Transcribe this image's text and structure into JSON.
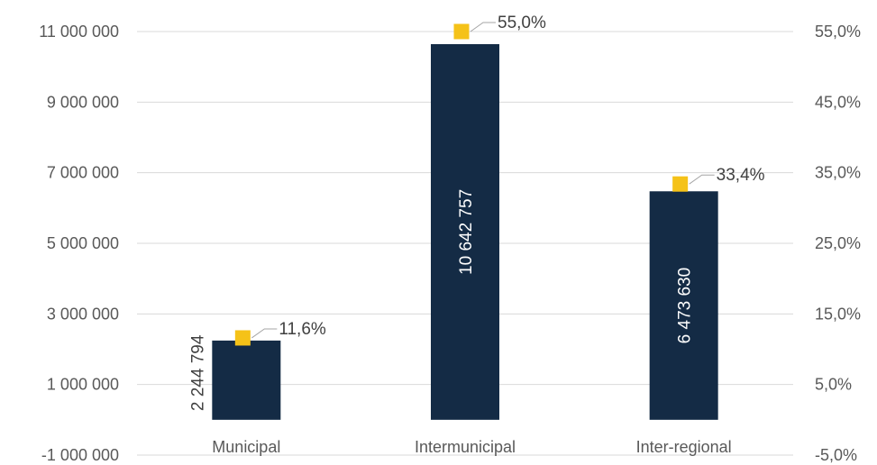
{
  "chart_data": {
    "type": "bar",
    "categories": [
      "Municipal",
      "Intermunicipal",
      "Inter-regional"
    ],
    "series": [
      {
        "type": "bar",
        "axis": "left",
        "color": "#142b45",
        "values": [
          2244794,
          10642757,
          6473630
        ],
        "data_labels": [
          "2 244 794",
          "10 642 757",
          "6 473 630"
        ]
      },
      {
        "type": "marker",
        "axis": "right",
        "color": "#f5c218",
        "values": [
          11.6,
          55.0,
          33.4
        ],
        "data_labels": [
          "11,6%",
          "55,0%",
          "33,4%"
        ]
      }
    ],
    "y_left": {
      "range": [
        -1000000,
        11000000
      ],
      "ticks": [
        11000000,
        9000000,
        7000000,
        5000000,
        3000000,
        1000000,
        -1000000
      ],
      "tick_labels": [
        "11 000 000",
        "9 000 000",
        "7 000 000",
        "5 000 000",
        "3 000 000",
        "1 000 000",
        "-1 000 000"
      ]
    },
    "y_right": {
      "range": [
        -5,
        55
      ],
      "ticks": [
        55,
        45,
        35,
        25,
        15,
        5,
        -5
      ],
      "tick_labels": [
        "55,0%",
        "45,0%",
        "35,0%",
        "25,0%",
        "15,0%",
        "5,0%",
        "-5,0%"
      ]
    },
    "grid": true,
    "legend": "none"
  }
}
